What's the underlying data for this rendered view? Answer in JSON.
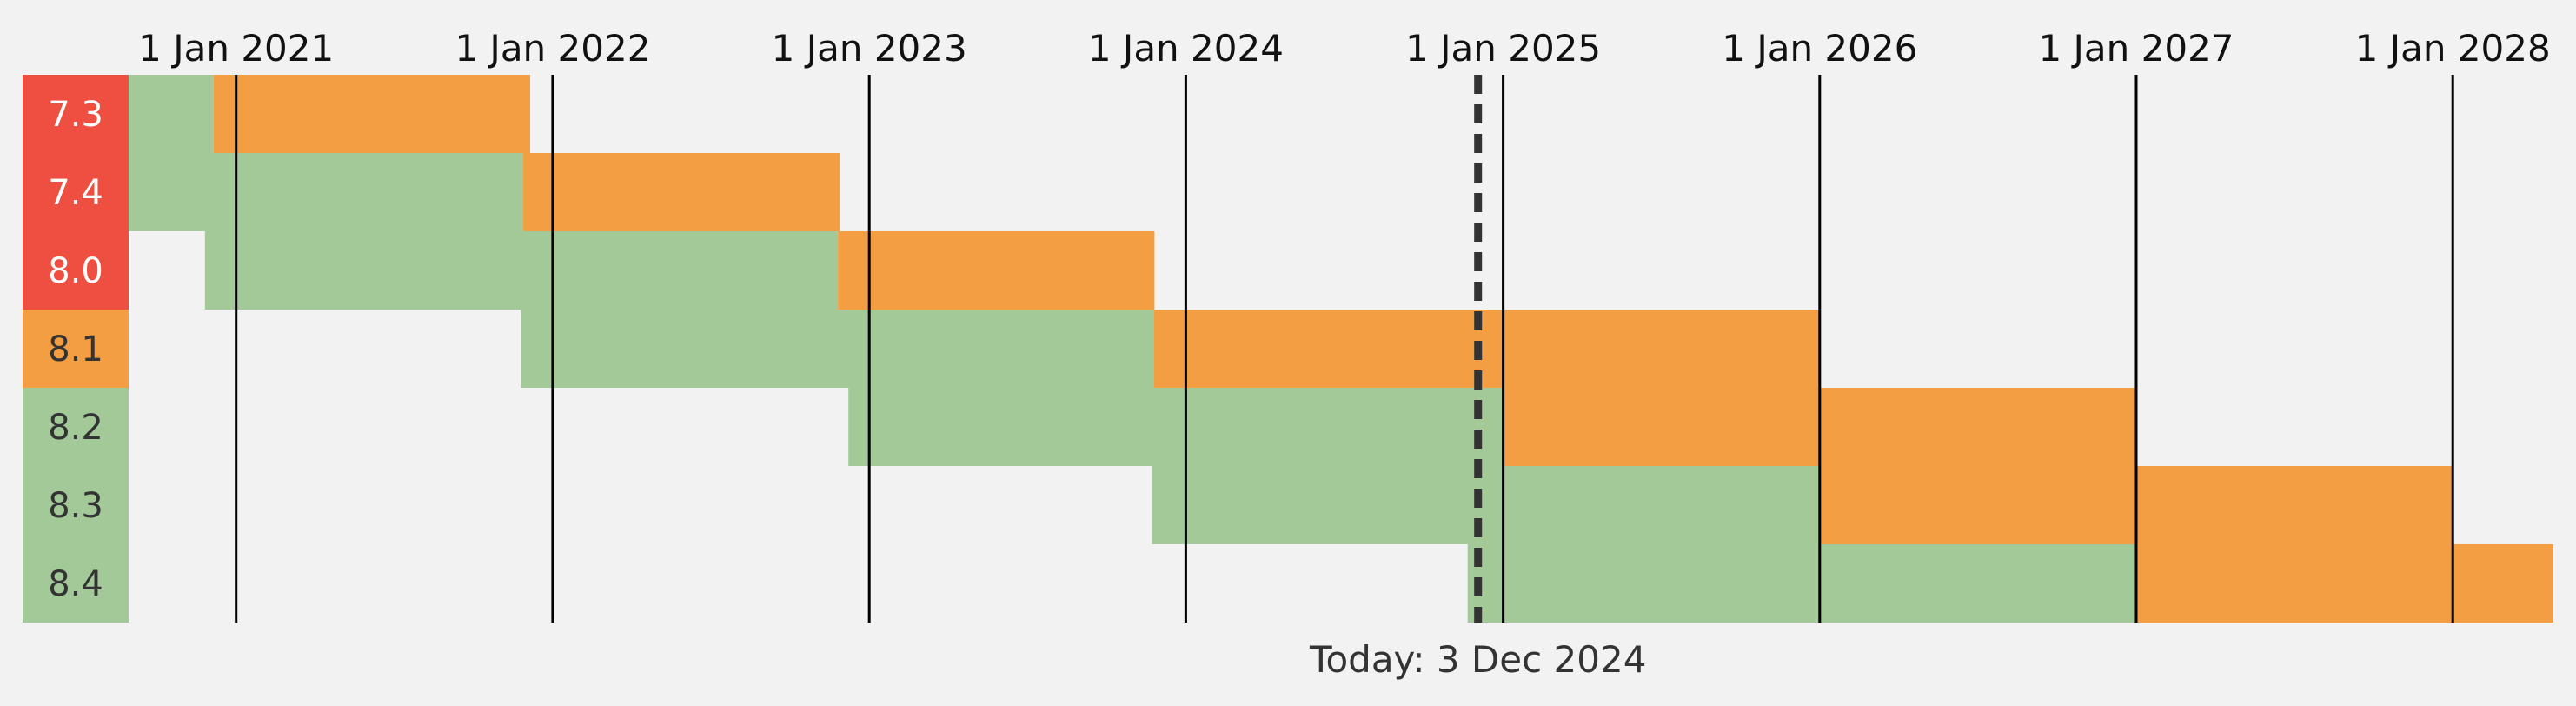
{
  "colors": {
    "background": "#f2f2f2",
    "active_support": "#a3c999",
    "security_only": "#f39e42",
    "end_of_life": "#ef4f40",
    "eol_text": "#ffffff",
    "supported_text": "#333333",
    "axis_line": "#000000",
    "today_line": "#333333"
  },
  "chart_data": {
    "type": "gantt",
    "title": "",
    "xlabel": "",
    "ylabel": "",
    "x_axis": {
      "range": [
        "2020-08-28",
        "2028-04-26"
      ],
      "ticks": [
        {
          "date": "2021-01-01",
          "label": "1 Jan 2021"
        },
        {
          "date": "2022-01-01",
          "label": "1 Jan 2022"
        },
        {
          "date": "2023-01-01",
          "label": "1 Jan 2023"
        },
        {
          "date": "2024-01-01",
          "label": "1 Jan 2024"
        },
        {
          "date": "2025-01-01",
          "label": "1 Jan 2025"
        },
        {
          "date": "2026-01-01",
          "label": "1 Jan 2026"
        },
        {
          "date": "2027-01-01",
          "label": "1 Jan 2027"
        },
        {
          "date": "2028-01-01",
          "label": "1 Jan 2028"
        }
      ]
    },
    "today": {
      "date": "2024-12-03",
      "label": "Today: 3 Dec 2024"
    },
    "versions": [
      {
        "version": "7.3",
        "status": "eol",
        "active_start": "2018-12-06",
        "active_end": "2020-12-06",
        "security_end": "2021-12-06"
      },
      {
        "version": "7.4",
        "status": "eol",
        "active_start": "2019-11-28",
        "active_end": "2021-11-28",
        "security_end": "2022-11-28"
      },
      {
        "version": "8.0",
        "status": "eol",
        "active_start": "2020-11-26",
        "active_end": "2022-11-26",
        "security_end": "2023-11-26"
      },
      {
        "version": "8.1",
        "status": "security",
        "active_start": "2021-11-25",
        "active_end": "2023-11-25",
        "security_end": "2025-12-31"
      },
      {
        "version": "8.2",
        "status": "supported",
        "active_start": "2022-12-08",
        "active_end": "2024-12-31",
        "security_end": "2026-12-31"
      },
      {
        "version": "8.3",
        "status": "supported",
        "active_start": "2023-11-23",
        "active_end": "2025-12-31",
        "security_end": "2027-12-31"
      },
      {
        "version": "8.4",
        "status": "supported",
        "active_start": "2024-11-21",
        "active_end": "2026-12-31",
        "security_end": "2028-12-31"
      }
    ]
  }
}
